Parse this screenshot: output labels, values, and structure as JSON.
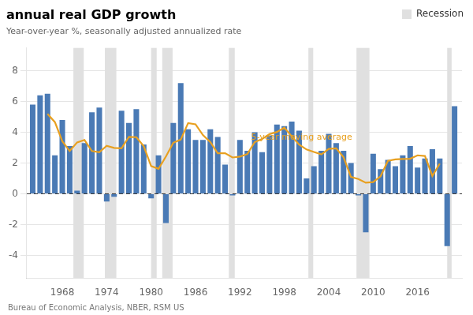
{
  "chart_data": {
    "type": "bar",
    "title": "annual real GDP growth",
    "subtitle": "Year-over-year %, seasonally adjusted annualized rate",
    "source": "Bureau of Economic Analysis, NBER, RSM US",
    "x": [
      1964,
      1965,
      1966,
      1967,
      1968,
      1969,
      1970,
      1971,
      1972,
      1973,
      1974,
      1975,
      1976,
      1977,
      1978,
      1979,
      1980,
      1981,
      1982,
      1983,
      1984,
      1985,
      1986,
      1987,
      1988,
      1989,
      1990,
      1991,
      1992,
      1993,
      1994,
      1995,
      1996,
      1997,
      1998,
      1999,
      2000,
      2001,
      2002,
      2003,
      2004,
      2005,
      2006,
      2007,
      2008,
      2009,
      2010,
      2011,
      2012,
      2013,
      2014,
      2015,
      2016,
      2017,
      2018,
      2019,
      2020,
      2021
    ],
    "series": [
      {
        "type": "bar",
        "color": "#4a7ab5",
        "values": [
          5.8,
          6.4,
          6.5,
          2.5,
          4.8,
          3.1,
          0.2,
          3.3,
          5.3,
          5.6,
          -0.5,
          -0.2,
          5.4,
          4.6,
          5.5,
          3.2,
          -0.3,
          2.5,
          -1.9,
          4.6,
          7.2,
          4.2,
          3.5,
          3.5,
          4.2,
          3.7,
          1.9,
          -0.1,
          3.5,
          2.8,
          4.0,
          2.7,
          3.8,
          4.5,
          4.4,
          4.7,
          4.1,
          1.0,
          1.8,
          2.8,
          3.9,
          3.3,
          2.8,
          2.0,
          -0.1,
          -2.5,
          2.6,
          1.6,
          2.2,
          1.8,
          2.5,
          3.1,
          1.7,
          2.3,
          2.9,
          2.3,
          -3.4,
          5.7
        ]
      },
      {
        "type": "line",
        "color": "#E8A020",
        "line_style": "solid",
        "values": [
          null,
          null,
          5.2,
          4.66,
          3.42,
          2.78,
          3.34,
          3.5,
          2.78,
          2.7,
          3.12,
          2.98,
          2.96,
          3.7,
          3.68,
          3.1,
          1.8,
          1.62,
          2.42,
          3.32,
          3.52,
          4.6,
          4.52,
          3.82,
          3.36,
          2.64,
          2.64,
          2.36,
          2.42,
          2.58,
          3.36,
          3.56,
          3.88,
          4.02,
          4.3,
          3.74,
          3.2,
          2.88,
          2.72,
          2.56,
          2.92,
          2.96,
          2.38,
          1.1,
          0.96,
          0.72,
          0.76,
          1.14,
          2.14,
          2.24,
          2.26,
          2.28,
          2.5,
          2.46,
          1.16,
          1.96,
          null,
          null
        ]
      }
    ],
    "recession_bands": {
      "label": "Recession",
      "color": "#E0E0E0",
      "ranges": [
        [
          1969.5,
          1970.9
        ],
        [
          1973.75,
          1975.3
        ],
        [
          1980.0,
          1980.75
        ],
        [
          1981.5,
          1982.9
        ],
        [
          1990.5,
          1991.3
        ],
        [
          2001.25,
          2001.9
        ],
        [
          2007.75,
          2009.5
        ],
        [
          2020.0,
          2020.6
        ]
      ]
    },
    "hlines": [
      {
        "y": 0,
        "line_style": "dashed"
      }
    ],
    "annotations": [
      {
        "text": "5-year moving average",
        "x": 1993.5,
        "y": 3.3,
        "color": "#E8A020"
      }
    ],
    "xlim": [
      1963.2,
      2022.0
    ],
    "xticks": [
      1968,
      1974,
      1980,
      1986,
      1992,
      1998,
      2004,
      2010,
      2016
    ],
    "ylim": [
      -5.5,
      9.5
    ],
    "yticks": [
      -4,
      -2,
      0,
      2,
      4,
      6,
      8
    ],
    "grid": "y"
  }
}
